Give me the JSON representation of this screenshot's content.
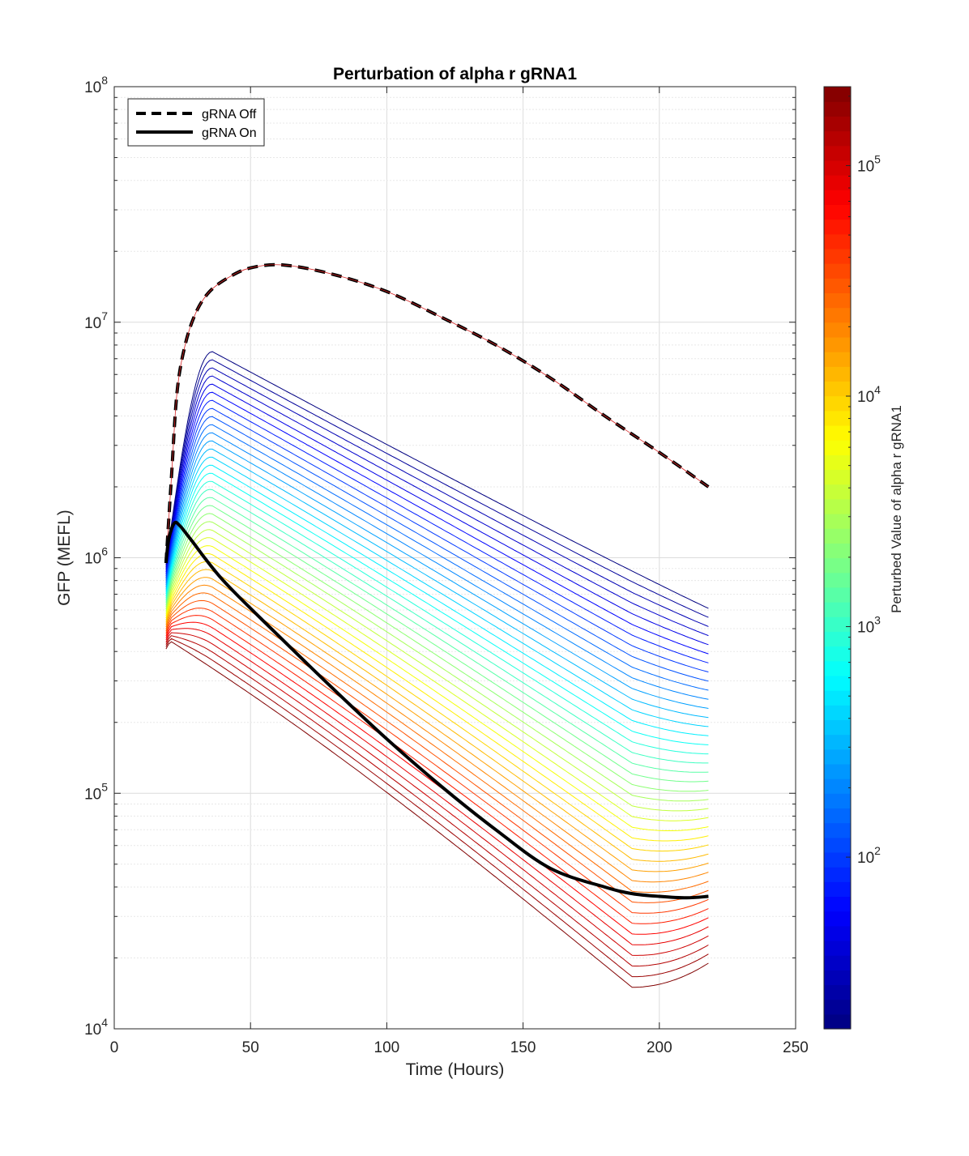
{
  "chart_data": {
    "type": "line",
    "title": "Perturbation of alpha r gRNA1",
    "xlabel": "Time (Hours)",
    "ylabel": "GFP (MEFL)",
    "xlim": [
      0,
      250
    ],
    "ylim": [
      10000,
      100000000
    ],
    "yscale": "log",
    "grid": true,
    "x_ticks": [
      "0",
      "50",
      "100",
      "150",
      "200",
      "250"
    ],
    "y_ticks": [
      {
        "base": "10",
        "exp": "4"
      },
      {
        "base": "10",
        "exp": "5"
      },
      {
        "base": "10",
        "exp": "6"
      },
      {
        "base": "10",
        "exp": "7"
      },
      {
        "base": "10",
        "exp": "8"
      }
    ],
    "legend": {
      "position": "top-left",
      "entries": [
        {
          "label": "gRNA Off",
          "style": "dashed",
          "color": "#000000"
        },
        {
          "label": "gRNA On",
          "style": "solid",
          "color": "#000000"
        }
      ]
    },
    "colorbar": {
      "label": "Perturbed Value of alpha r gRNA1",
      "scale": "log",
      "range": [
        18,
        220000
      ],
      "colormap": "jet",
      "ticks": [
        {
          "value": 100,
          "base": "10",
          "exp": "2"
        },
        {
          "value": 1000,
          "base": "10",
          "exp": "3"
        },
        {
          "value": 10000,
          "base": "10",
          "exp": "4"
        },
        {
          "value": 100000,
          "base": "10",
          "exp": "5"
        }
      ]
    },
    "perturbation_family": {
      "count": 40,
      "t_start": 19,
      "t_end": 218,
      "lowest_param_curve": {
        "start": 950000,
        "peak_t": 36,
        "peak": 7500000,
        "end": 610000
      },
      "highest_param_curve": {
        "start": 410000,
        "peak_t": 21,
        "peak": 440000,
        "min_t": 190,
        "min": 15000,
        "end": 19000
      }
    },
    "series": [
      {
        "name": "gRNA Off",
        "style": "dashed",
        "x": [
          19,
          21,
          23,
          26,
          30,
          35,
          42,
          50,
          62,
          80,
          100,
          120,
          140,
          160,
          180,
          200,
          218
        ],
        "y": [
          950000,
          2200000,
          5000000,
          8000000,
          11000000,
          13500000,
          15500000,
          17000000,
          17500000,
          16000000,
          13500000,
          10500000,
          8000000,
          5800000,
          4000000,
          2800000,
          2000000
        ]
      },
      {
        "name": "gRNA On",
        "style": "solid",
        "x": [
          19,
          20,
          22,
          24,
          28,
          40,
          60,
          80,
          100,
          120,
          140,
          160,
          180,
          190,
          200,
          210,
          218
        ],
        "y": [
          950000,
          1200000,
          1400000,
          1370000,
          1200000,
          800000,
          470000,
          280000,
          170000,
          107000,
          70000,
          48000,
          40000,
          37500,
          36500,
          36000,
          36500
        ]
      }
    ]
  }
}
